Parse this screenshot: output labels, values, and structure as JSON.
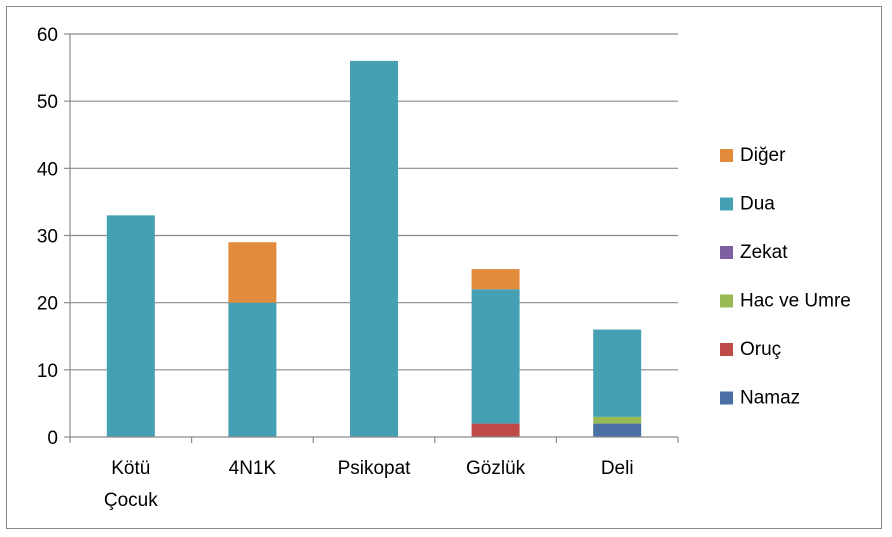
{
  "chart_data": {
    "type": "bar",
    "stacked": true,
    "categories": [
      "Kötü Çocuk",
      "4N1K",
      "Psikopat",
      "Gözlük",
      "Deli"
    ],
    "category_lines": [
      [
        "Kötü",
        "Çocuk"
      ],
      [
        "4N1K"
      ],
      [
        "Psikopat"
      ],
      [
        "Gözlük"
      ],
      [
        "Deli"
      ]
    ],
    "series": [
      {
        "name": "Namaz",
        "color": "#4a6fa5",
        "values": [
          0,
          0,
          0,
          0,
          2
        ]
      },
      {
        "name": "Oruç",
        "color": "#be4b48",
        "values": [
          0,
          0,
          0,
          2,
          0
        ]
      },
      {
        "name": "Hac ve Umre",
        "color": "#98b954",
        "values": [
          0,
          0,
          0,
          0,
          1
        ]
      },
      {
        "name": "Zekat",
        "color": "#7d60a0",
        "values": [
          0,
          0,
          0,
          0,
          0
        ]
      },
      {
        "name": "Dua",
        "color": "#46a0b4",
        "values": [
          33,
          20,
          56,
          20,
          13
        ]
      },
      {
        "name": "Diğer",
        "color": "#e38b3c",
        "values": [
          0,
          9,
          0,
          3,
          0
        ]
      }
    ],
    "ylim": [
      0,
      60
    ],
    "yticks": [
      0,
      10,
      20,
      30,
      40,
      50,
      60
    ],
    "grid": true,
    "legend_position": "right",
    "xlabel": "",
    "ylabel": "",
    "title": ""
  }
}
